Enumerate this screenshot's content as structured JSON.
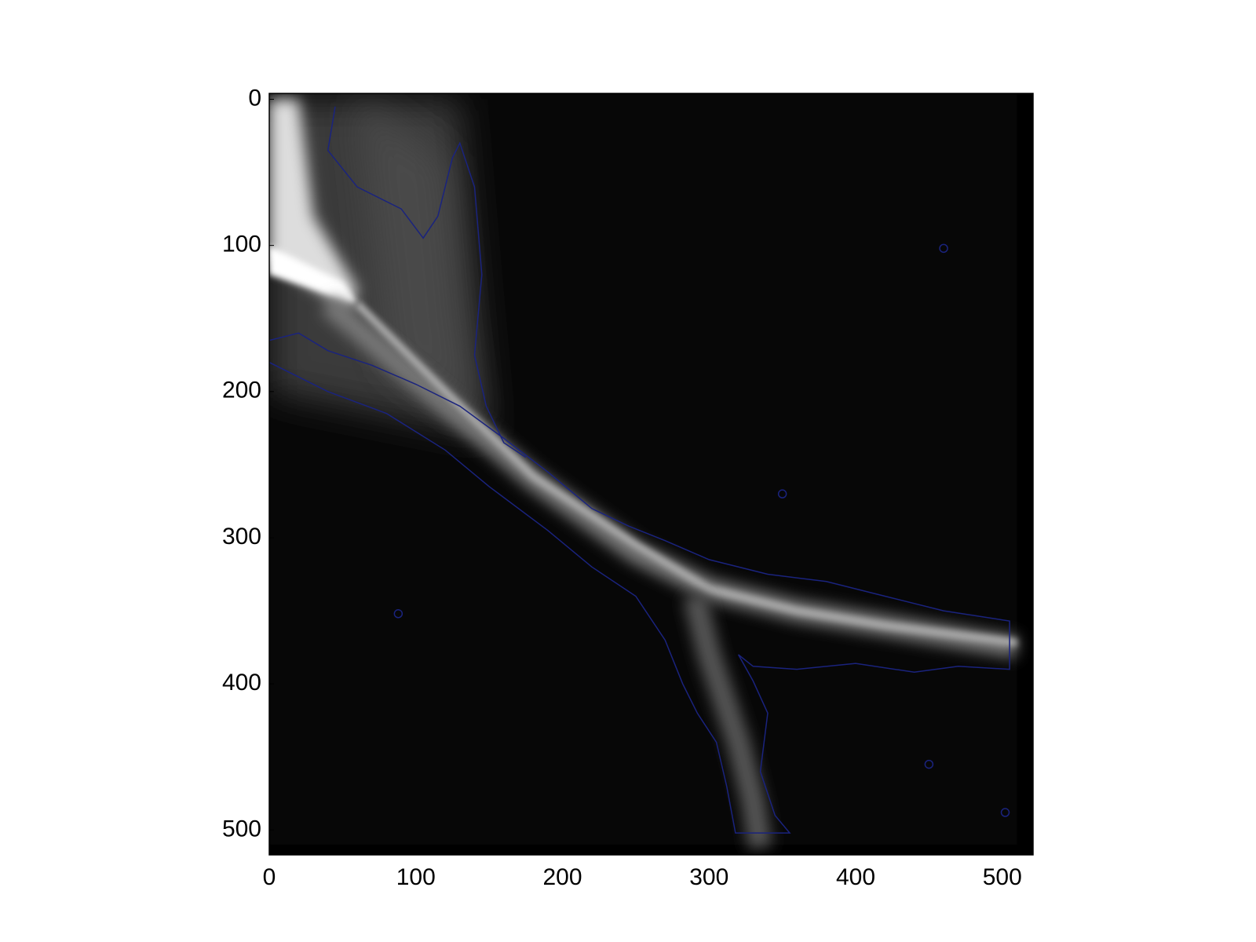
{
  "chart_data": {
    "type": "image",
    "xlim": [
      0,
      521
    ],
    "ylim": [
      517,
      -4
    ],
    "xticks": [
      0,
      100,
      200,
      300,
      400,
      500
    ],
    "yticks": [
      0,
      100,
      200,
      300,
      400,
      500
    ],
    "contour_color": "#1a237e"
  }
}
